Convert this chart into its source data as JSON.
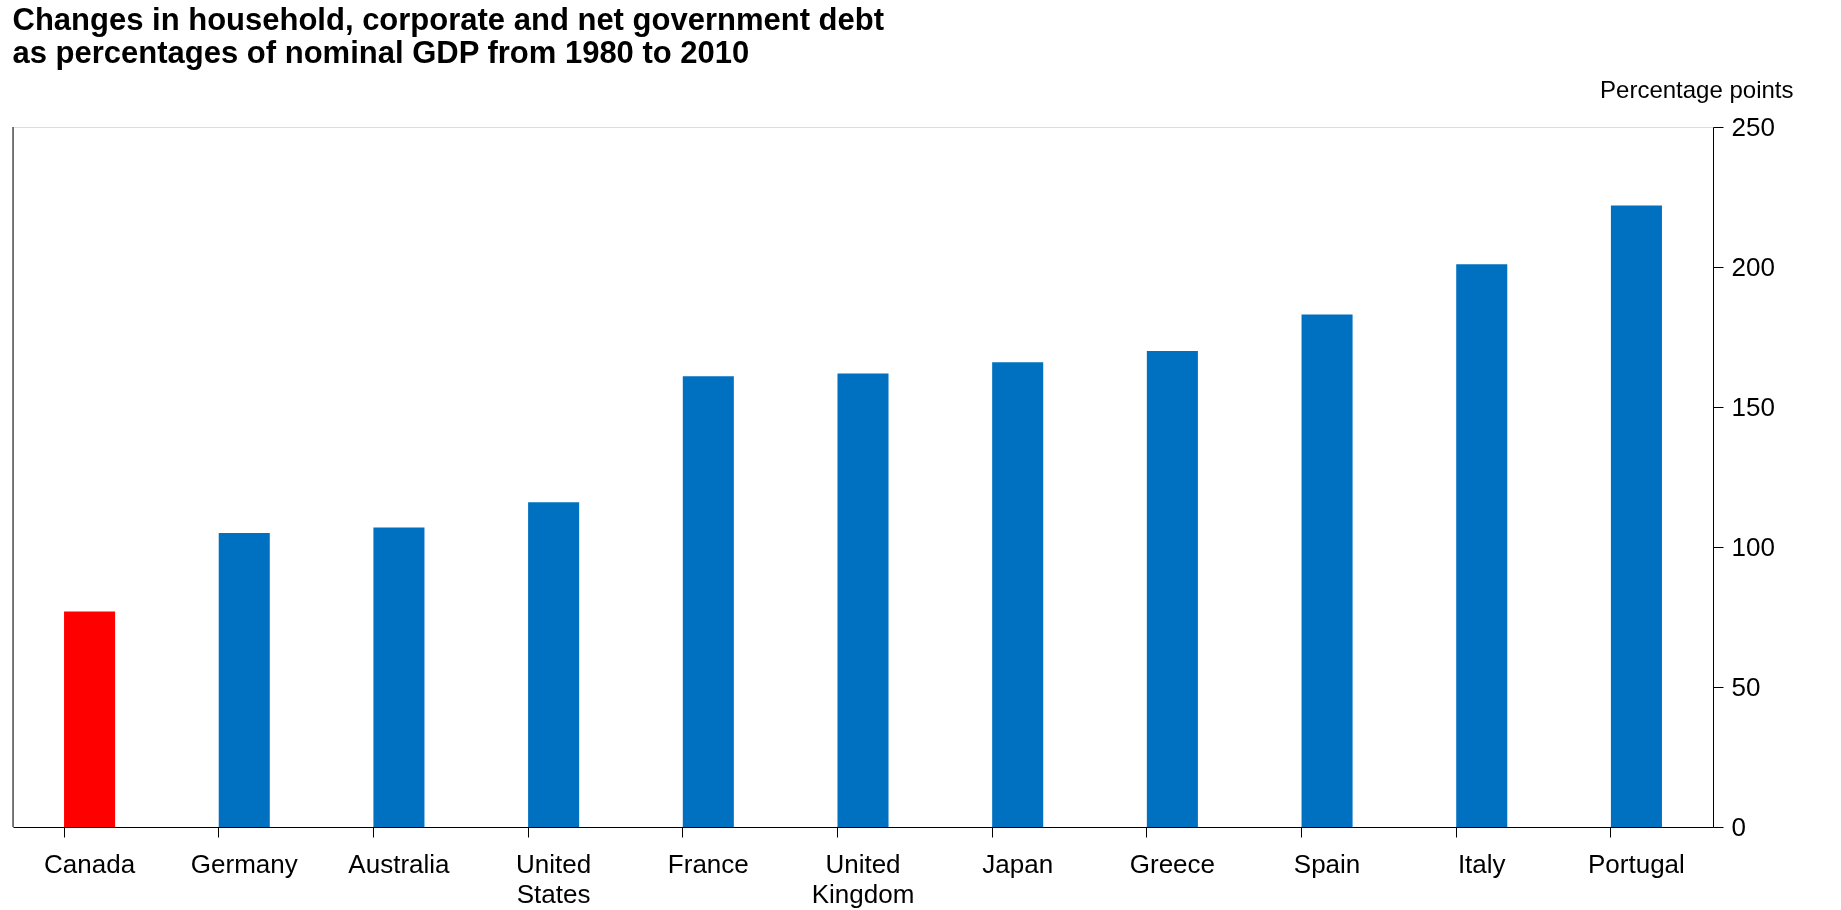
{
  "chart_data": {
    "type": "bar",
    "title": [
      "Changes in household, corporate and net government debt",
      "as percentages of nominal GDP from 1980 to 2010"
    ],
    "ylabel": "Percentage points",
    "categories": [
      "Canada",
      "Germany",
      "Australia",
      "United States",
      "France",
      "United Kingdom",
      "Japan",
      "Greece",
      "Spain",
      "Italy",
      "Portugal"
    ],
    "values": [
      77,
      105,
      107,
      116,
      161,
      162,
      166,
      170,
      183,
      201,
      222
    ],
    "colors": [
      "#ff0000",
      "#0070c0",
      "#0070c0",
      "#0070c0",
      "#0070c0",
      "#0070c0",
      "#0070c0",
      "#0070c0",
      "#0070c0",
      "#0070c0",
      "#0070c0"
    ],
    "ylim": [
      0,
      250
    ],
    "yticks": [
      0,
      50,
      100,
      150,
      200,
      250
    ],
    "grid": false
  }
}
